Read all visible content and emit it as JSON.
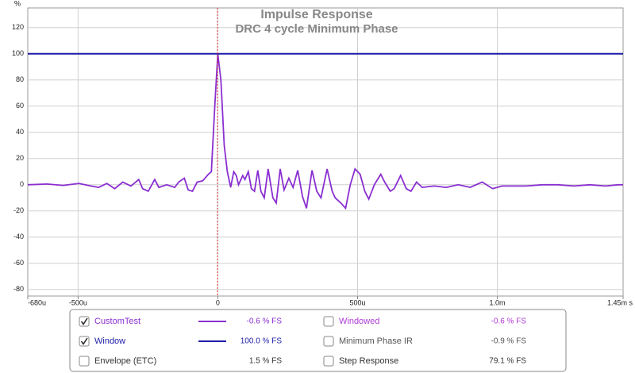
{
  "chart_data": {
    "type": "line",
    "title": "Impulse Response",
    "subtitle": "DRC 4 cycle Minimum Phase",
    "y_unit": "%",
    "xlim": [
      -680,
      1450
    ],
    "xticks": [
      {
        "value": -680,
        "label": "-680u"
      },
      {
        "value": -500,
        "label": "-500u"
      },
      0,
      {
        "value": 500,
        "label": "500u"
      },
      {
        "value": 1000,
        "label": "1.0m"
      },
      {
        "value": 1450,
        "label": "1.45m s"
      }
    ],
    "ylim": [
      -85,
      135
    ],
    "yticks": [
      -80,
      -60,
      -40,
      -20,
      0,
      20,
      40,
      60,
      80,
      100,
      120
    ],
    "grid": true,
    "series": [
      {
        "name": "CustomTest",
        "color": "#8a2fd0",
        "readout": "-0.6 % FS",
        "checked": true,
        "x": [
          -680,
          -611,
          -554,
          -497,
          -454,
          -426,
          -397,
          -369,
          -340,
          -311,
          -283,
          -269,
          -249,
          -226,
          -211,
          -183,
          -154,
          -140,
          -120,
          -106,
          -91,
          -74,
          -54,
          -34,
          -23,
          -11,
          0,
          11,
          23,
          34,
          46,
          57,
          66,
          74,
          89,
          97,
          109,
          120,
          131,
          143,
          154,
          166,
          180,
          197,
          209,
          223,
          237,
          254,
          269,
          286,
          303,
          317,
          337,
          354,
          369,
          391,
          409,
          420,
          440,
          457,
          474,
          491,
          509,
          526,
          540,
          560,
          583,
          597,
          617,
          631,
          654,
          674,
          691,
          711,
          731,
          774,
          817,
          860,
          903,
          946,
          983,
          1017,
          1060,
          1103,
          1160,
          1217,
          1274,
          1331,
          1389,
          1431,
          1450
        ],
        "values": [
          0,
          0.5,
          -0.5,
          1,
          -1,
          -2,
          1,
          -3,
          2,
          -1,
          4,
          -3,
          -5,
          4,
          -2,
          0,
          -2,
          2,
          5,
          -4,
          -5,
          2,
          3,
          8,
          10,
          60,
          100,
          80,
          30,
          10,
          -2,
          10,
          7,
          0,
          7,
          4,
          10,
          -3,
          -5,
          11,
          -5,
          -10,
          12,
          -10,
          -14,
          12,
          -4,
          5,
          -2,
          11,
          -9,
          -18,
          11,
          -5,
          -10,
          12,
          -5,
          -10,
          -14,
          -18,
          0,
          12,
          8,
          -5,
          -11,
          0,
          8,
          2,
          -5,
          -3,
          7,
          -3,
          -5,
          2,
          -2,
          -1,
          -2,
          0,
          -2,
          2,
          -3,
          -1,
          -1,
          -1,
          0,
          0,
          -1,
          0,
          -1,
          0,
          0
        ]
      },
      {
        "name": "Window",
        "color": "#1c1ca8",
        "readout": "100.0 % FS",
        "checked": true,
        "x": [
          -680,
          1450
        ],
        "values": [
          100,
          100
        ]
      }
    ],
    "other_traces": [
      {
        "name": "Envelope (ETC)",
        "color": "#333333",
        "readout": "1.5 % FS",
        "checked": false
      },
      {
        "name": "Windowed",
        "color": "#b03cd8",
        "readout": "-0.6 % FS",
        "checked": false
      },
      {
        "name": "Minimum Phase IR",
        "color": "#555555",
        "readout": "-0.9 % FS",
        "checked": false
      },
      {
        "name": "Step Response",
        "color": "#333333",
        "readout": "79.1 % FS",
        "checked": false
      }
    ]
  }
}
